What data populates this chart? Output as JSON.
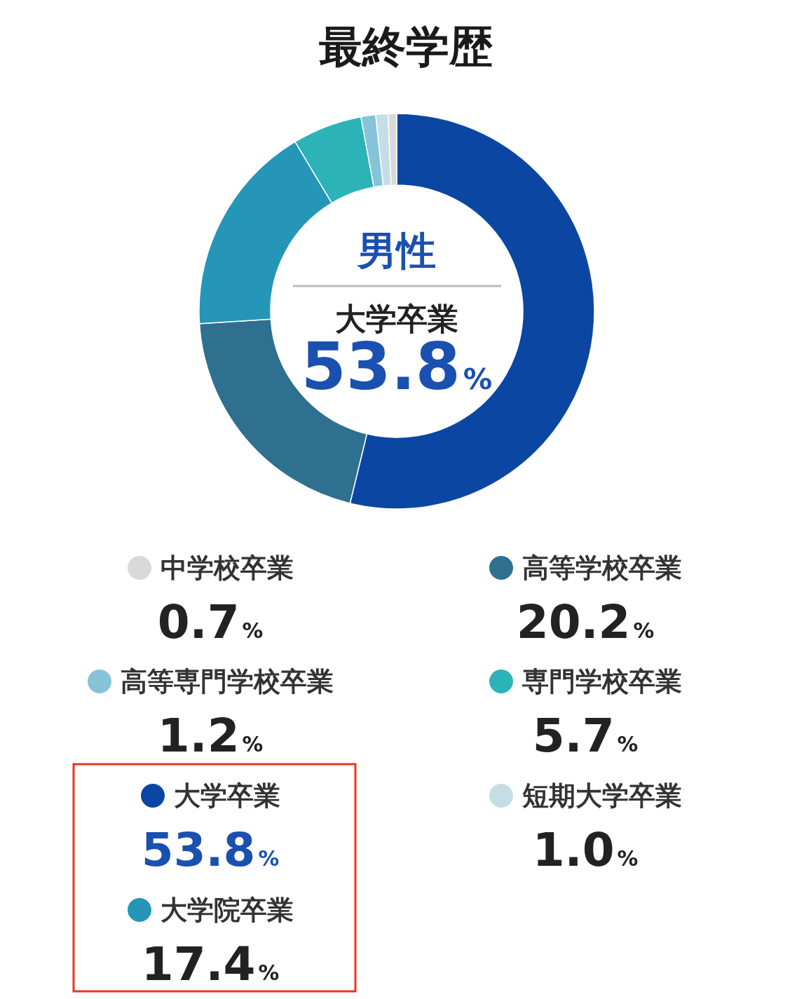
{
  "chart_data": {
    "type": "donut",
    "title": "最終学歴",
    "categories": [
      "大学卒業",
      "高等学校卒業",
      "大学院卒業",
      "専門学校卒業",
      "高等専門学校卒業",
      "短期大学卒業",
      "中学校卒業"
    ],
    "values": [
      53.8,
      20.2,
      17.4,
      5.7,
      1.2,
      1.0,
      0.7
    ],
    "colors": [
      "#0b46a3",
      "#2f6f8f",
      "#2596b8",
      "#2bb3b8",
      "#86c3d8",
      "#c5dde6",
      "#d9d9d9"
    ],
    "value_labels": [
      "53.8%",
      "20.2%",
      "17.4%",
      "5.7%",
      "1.2%",
      "1.0%",
      "0.7%"
    ],
    "annotations": [
      "男性",
      "大学卒業",
      "53.8%"
    ],
    "legend": "bottom"
  }
}
